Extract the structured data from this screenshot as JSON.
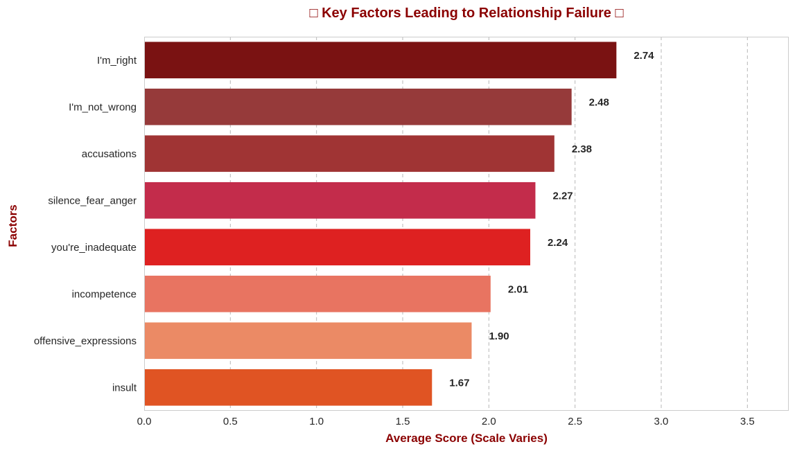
{
  "chart_data": {
    "type": "bar",
    "orientation": "horizontal",
    "title": "□ Key Factors Leading to Relationship Failure □",
    "xlabel": "Average Score (Scale Varies)",
    "ylabel": "Factors",
    "xlim": [
      0,
      3.74
    ],
    "xticks": [
      "0.0",
      "0.5",
      "1.0",
      "1.5",
      "2.0",
      "2.5",
      "3.0",
      "3.5"
    ],
    "grid": "vertical dashed",
    "categories": [
      "I'm_right",
      "I'm_not_wrong",
      "accusations",
      "silence_fear_anger",
      "you're_inadequate",
      "incompetence",
      "offensive_expressions",
      "insult"
    ],
    "values": [
      2.74,
      2.48,
      2.38,
      2.27,
      2.24,
      2.01,
      1.9,
      1.67
    ],
    "value_labels": [
      "2.74",
      "2.48",
      "2.38",
      "2.27",
      "2.24",
      "2.01",
      "1.90",
      "1.67"
    ],
    "colors": [
      "#7a1212",
      "#963a3a",
      "#a03434",
      "#c32c4b",
      "#de2121",
      "#e87461",
      "#eb8a65",
      "#e05423"
    ],
    "title_color": "#8b0000",
    "axis_title_color": "#8b0000"
  }
}
